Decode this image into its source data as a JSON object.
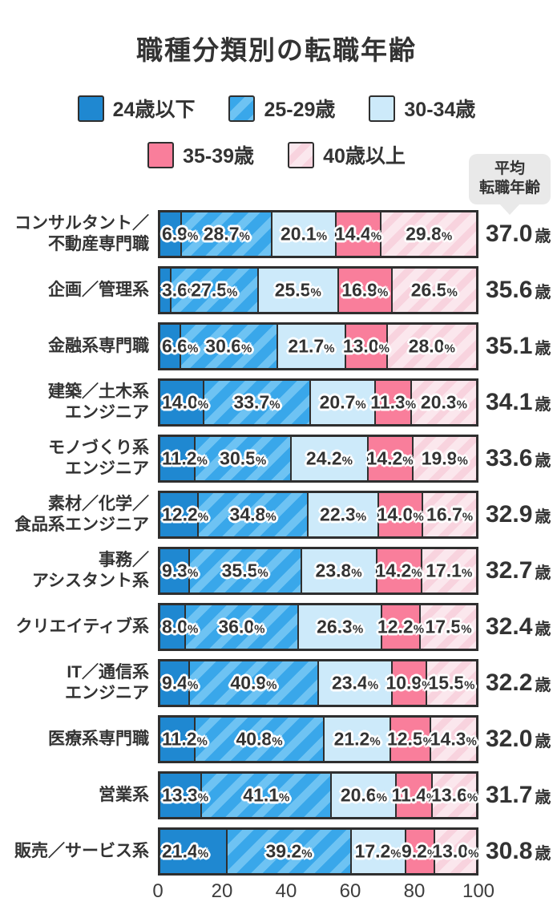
{
  "title": "職種分類別の転職年齢",
  "badge": {
    "line1": "平均",
    "line2": "転職年齢"
  },
  "legend": [
    {
      "label": "24歳以下",
      "color": "#1F88D1",
      "pattern": "solid",
      "name": "age-under-24"
    },
    {
      "label": "25-29歳",
      "color": "#39A7EA",
      "pattern": "striped",
      "stripe": "#6EC3F3",
      "name": "age-25-29"
    },
    {
      "label": "30-34歳",
      "color": "#CDEAFA",
      "pattern": "solid",
      "name": "age-30-34"
    },
    {
      "label": "35-39歳",
      "color": "#F97E9B",
      "pattern": "solid",
      "name": "age-35-39"
    },
    {
      "label": "40歳以上",
      "color": "#FBE7ED",
      "pattern": "striped",
      "stripe": "#F8D3DE",
      "name": "age-40-over"
    }
  ],
  "chart_data": {
    "type": "bar",
    "stacked": true,
    "orientation": "horizontal",
    "title": "職種分類別の転職年齢",
    "value_unit": "%",
    "categories": [
      "コンサルタント／不動産専門職",
      "企画／管理系",
      "金融系専門職",
      "建築／土木系エンジニア",
      "モノづくり系エンジニア",
      "素材／化学／食品系エンジニア",
      "事務／アシスタント系",
      "クリエイティブ系",
      "IT／通信系エンジニア",
      "医療系専門職",
      "営業系",
      "販売／サービス系"
    ],
    "category_lines": [
      [
        "コンサルタント／",
        "不動産専門職"
      ],
      [
        "企画／管理系"
      ],
      [
        "金融系専門職"
      ],
      [
        "建築／土木系",
        "エンジニア"
      ],
      [
        "モノづくり系",
        "エンジニア"
      ],
      [
        "素材／化学／",
        "食品系エンジニア"
      ],
      [
        "事務／",
        "アシスタント系"
      ],
      [
        "クリエイティブ系"
      ],
      [
        "IT／通信系",
        "エンジニア"
      ],
      [
        "医療系専門職"
      ],
      [
        "営業系"
      ],
      [
        "販売／サービス系"
      ]
    ],
    "series": [
      {
        "name": "24歳以下",
        "values": [
          6.9,
          3.6,
          6.6,
          14.0,
          11.2,
          12.2,
          9.3,
          8.0,
          9.4,
          11.2,
          13.3,
          21.4
        ]
      },
      {
        "name": "25-29歳",
        "values": [
          28.7,
          27.5,
          30.6,
          33.7,
          30.5,
          34.8,
          35.5,
          36.0,
          40.9,
          40.8,
          41.1,
          39.2
        ]
      },
      {
        "name": "30-34歳",
        "values": [
          20.1,
          25.5,
          21.7,
          20.7,
          24.2,
          22.3,
          23.8,
          26.3,
          23.4,
          21.2,
          20.6,
          17.2
        ]
      },
      {
        "name": "35-39歳",
        "values": [
          14.4,
          16.9,
          13.0,
          11.3,
          14.2,
          14.0,
          14.2,
          12.2,
          10.9,
          12.5,
          11.4,
          9.2
        ]
      },
      {
        "name": "40歳以上",
        "values": [
          29.8,
          26.5,
          28.0,
          20.3,
          19.9,
          16.7,
          17.1,
          17.5,
          15.5,
          14.3,
          13.6,
          13.0
        ]
      }
    ],
    "averages": {
      "label": "平均転職年齢",
      "unit": "歳",
      "values": [
        "37.0",
        "35.6",
        "35.1",
        "34.1",
        "33.6",
        "32.9",
        "32.7",
        "32.4",
        "32.2",
        "32.0",
        "31.7",
        "30.8"
      ]
    },
    "x_axis": {
      "ticks": [
        0,
        20,
        40,
        60,
        80,
        100
      ],
      "range": [
        0,
        100
      ],
      "grid": false
    },
    "legend_position": "top"
  }
}
